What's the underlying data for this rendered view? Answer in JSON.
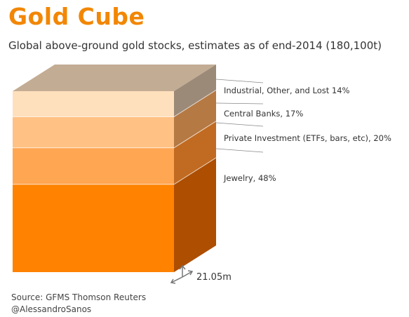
{
  "title": "Gold  Cube",
  "subtitle": "Global above-ground gold stocks, estimates as of end-2014 (180,100t)",
  "chart_data": {
    "type": "bar",
    "stacked": true,
    "orientation": "vertical",
    "unit": "%",
    "total_label": "180,100t",
    "segments": [
      {
        "label": "Jewelry, 48%",
        "value": 48
      },
      {
        "label": "Private Investment (ETFs, bars, etc), 20%",
        "value": 20
      },
      {
        "label": "Central Banks, 17%",
        "value": 17
      },
      {
        "label": "Industrial, Other, and Lost 14%",
        "value": 14
      }
    ],
    "dimension_label": "21.05m",
    "colors": {
      "front": [
        "#ff8200",
        "#ffa653",
        "#ffc184",
        "#ffe0bd"
      ],
      "side": [
        "#ad4e00",
        "#c16b22",
        "#b57944",
        "#9c8a78"
      ],
      "top": "#c3ac94"
    }
  },
  "source": {
    "line1": "Source: GFMS Thomson Reuters",
    "line2": "@AlessandroSanos"
  }
}
